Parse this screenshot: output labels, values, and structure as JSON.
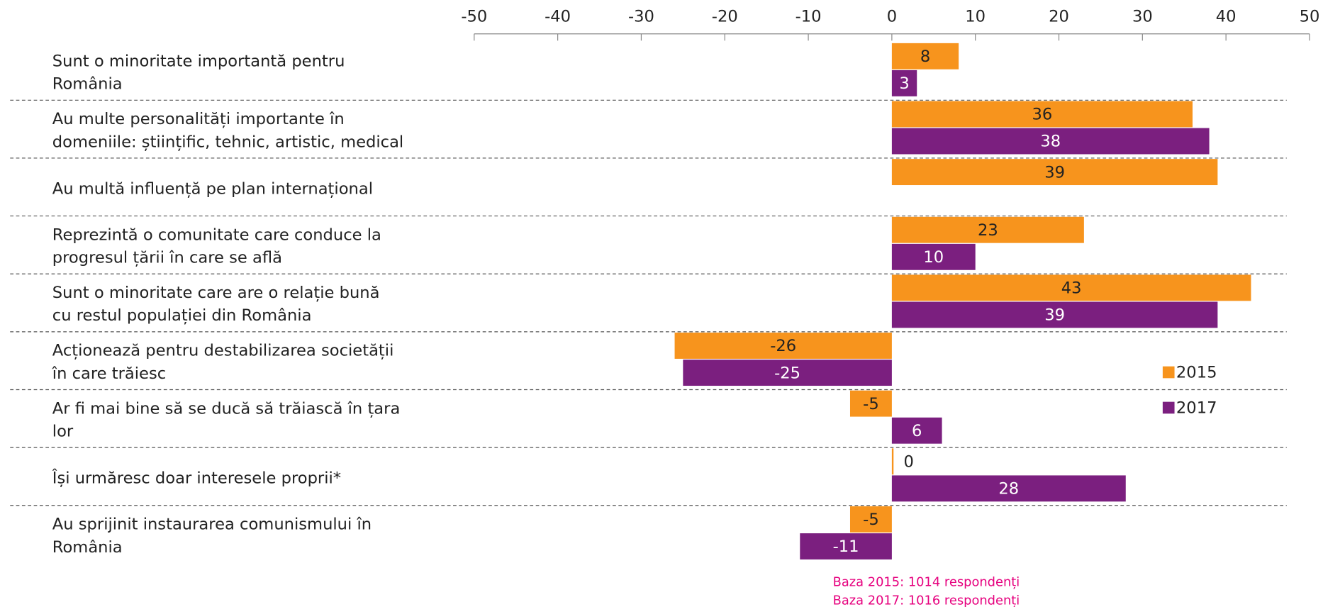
{
  "chart_data": {
    "type": "bar",
    "orientation": "horizontal",
    "categories": [
      [
        "Sunt o minoritate importantă pentru",
        "România"
      ],
      [
        "Au multe personalități importante în",
        "domeniile: științific, tehnic, artistic, medical"
      ],
      [
        "Au multă influență pe plan internațional"
      ],
      [
        "Reprezintă o comunitate care conduce la",
        "progresul țării în care se află"
      ],
      [
        "Sunt o minoritate care are o relație bună",
        "cu restul populației din România"
      ],
      [
        "Acționează pentru destabilizarea societății",
        "în care trăiesc"
      ],
      [
        "Ar fi mai bine să se ducă să trăiască în țara",
        "lor"
      ],
      [
        "Își urmăresc doar interesele proprii*"
      ],
      [
        "Au sprijinit instaurarea comunismului în",
        "România"
      ]
    ],
    "series": [
      {
        "name": "2015",
        "color": "#f7941d",
        "values": [
          8,
          36,
          39,
          23,
          43,
          -26,
          -5,
          0,
          -5
        ]
      },
      {
        "name": "2017",
        "color": "#7b1f7f",
        "values": [
          3,
          38,
          null,
          10,
          39,
          -25,
          6,
          28,
          -11
        ]
      }
    ],
    "xlim": [
      -50,
      50
    ],
    "xticks": [
      -50,
      -40,
      -30,
      -20,
      -10,
      0,
      10,
      20,
      30,
      40,
      50
    ],
    "notes": [
      "Baza 2015: 1014 respondenți",
      "Baza 2017: 1016 respondenți"
    ]
  }
}
